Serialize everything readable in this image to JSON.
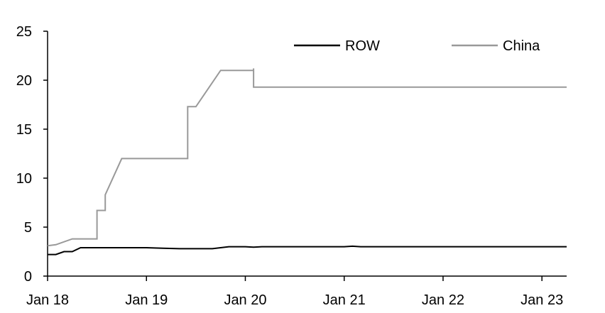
{
  "chart_data": {
    "type": "line",
    "title": "",
    "xlabel": "",
    "ylabel": "",
    "ylim": [
      0,
      25
    ],
    "yticks": [
      0,
      5,
      10,
      15,
      20,
      25
    ],
    "xlim": [
      "2018-01",
      "2023-04"
    ],
    "xticks": [
      {
        "date": "2018-01",
        "label": "Jan 18"
      },
      {
        "date": "2019-01",
        "label": "Jan 19"
      },
      {
        "date": "2020-01",
        "label": "Jan 20"
      },
      {
        "date": "2021-01",
        "label": "Jan 21"
      },
      {
        "date": "2022-01",
        "label": "Jan 22"
      },
      {
        "date": "2023-01",
        "label": "Jan 23"
      }
    ],
    "grid": false,
    "legend": {
      "position": "top"
    },
    "series": [
      {
        "name": "ROW",
        "color": "#000000",
        "points": [
          [
            "2018-01",
            2.2
          ],
          [
            "2018-02",
            2.2
          ],
          [
            "2018-03",
            2.5
          ],
          [
            "2018-04",
            2.5
          ],
          [
            "2018-05",
            2.9
          ],
          [
            "2018-06",
            2.9
          ],
          [
            "2019-01",
            2.9
          ],
          [
            "2019-03",
            2.85
          ],
          [
            "2019-05",
            2.8
          ],
          [
            "2019-09",
            2.8
          ],
          [
            "2019-11",
            3.0
          ],
          [
            "2020-01",
            3.0
          ],
          [
            "2020-02",
            2.95
          ],
          [
            "2020-03",
            3.0
          ],
          [
            "2021-01",
            3.0
          ],
          [
            "2021-02",
            3.05
          ],
          [
            "2021-03",
            3.0
          ],
          [
            "2023-04",
            3.0
          ]
        ]
      },
      {
        "name": "China",
        "color": "#999999",
        "points": [
          [
            "2018-01",
            3.1
          ],
          [
            "2018-02",
            3.2
          ],
          [
            "2018-04",
            3.8
          ],
          [
            "2018-07",
            3.8
          ],
          [
            "2018-07",
            6.7
          ],
          [
            "2018-08",
            6.7
          ],
          [
            "2018-08",
            8.3
          ],
          [
            "2018-10",
            12.0
          ],
          [
            "2019-06",
            12.0
          ],
          [
            "2019-06",
            17.3
          ],
          [
            "2019-07",
            17.3
          ],
          [
            "2019-10",
            21.0
          ],
          [
            "2020-02",
            21.0
          ],
          [
            "2020-02",
            21.2
          ],
          [
            "2020-02",
            19.3
          ],
          [
            "2021-02",
            19.3
          ],
          [
            "2023-04",
            19.3
          ]
        ]
      }
    ]
  }
}
